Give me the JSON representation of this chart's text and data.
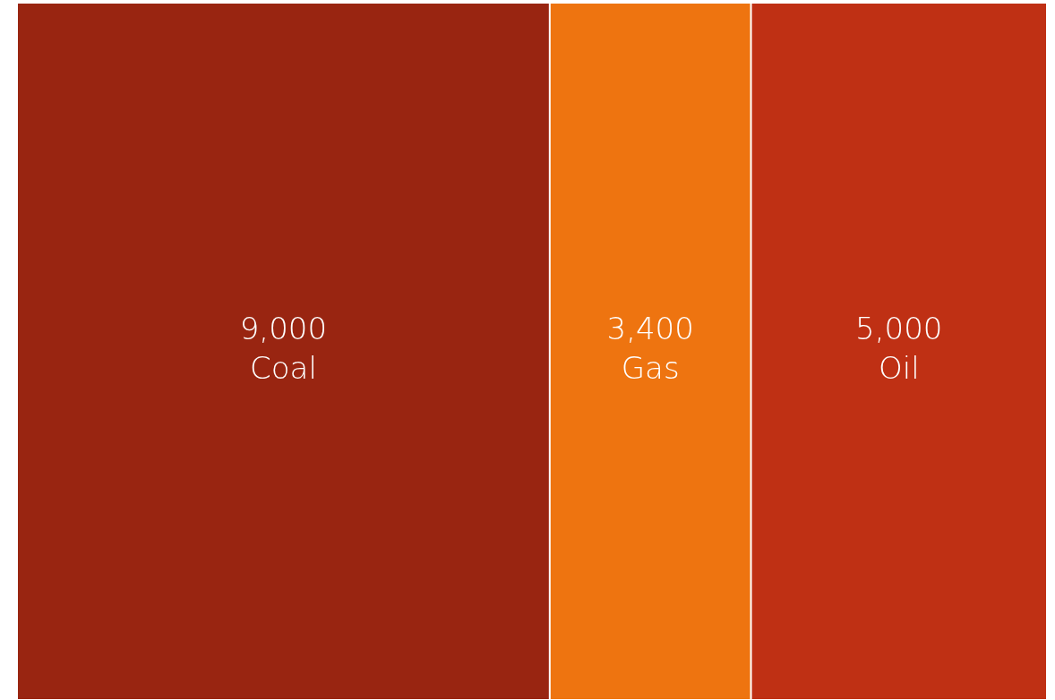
{
  "chart_data": {
    "type": "other",
    "categories": [
      "Coal",
      "Gas",
      "Oil"
    ],
    "values": [
      9000,
      3400,
      5000
    ],
    "value_labels": [
      "9,000",
      "3,400",
      "5,000"
    ],
    "colors": [
      "#992511",
      "#ee7410",
      "#bf3014"
    ],
    "data_labels": true,
    "legend": false
  }
}
